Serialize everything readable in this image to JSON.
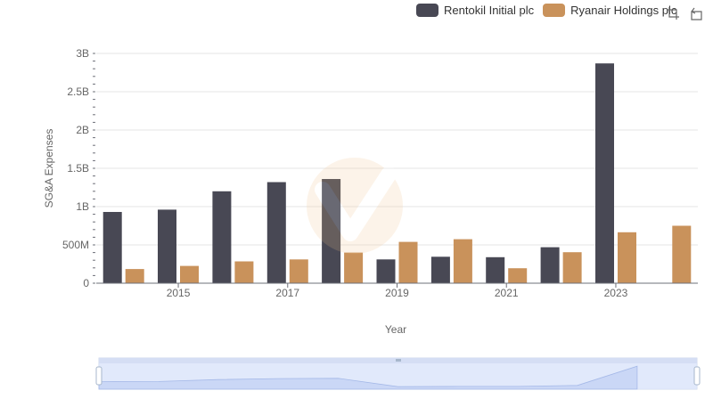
{
  "chart_data": {
    "type": "bar",
    "xlabel": "Year",
    "ylabel": "SG&A Expenses",
    "categories": [
      "2014",
      "2015",
      "2016",
      "2017",
      "2018",
      "2019",
      "2020",
      "2021",
      "2022",
      "2023",
      "2024"
    ],
    "x_tick_labels": [
      "2015",
      "2017",
      "2019",
      "2021",
      "2023"
    ],
    "y_tick_labels": [
      "0",
      "500M",
      "1B",
      "1.5B",
      "2B",
      "2.5B",
      "3B"
    ],
    "ylim": [
      0,
      3000000000
    ],
    "grid": true,
    "legend_position": "top-right",
    "series": [
      {
        "name": "Rentokil Initial plc",
        "color": "#484854",
        "values": [
          930000000,
          960000000,
          1200000000,
          1320000000,
          1360000000,
          310000000,
          345000000,
          340000000,
          470000000,
          2870000000,
          null
        ]
      },
      {
        "name": "Ryanair Holdings plc",
        "color": "#c9925b",
        "values": [
          185000000,
          225000000,
          285000000,
          310000000,
          400000000,
          540000000,
          575000000,
          195000000,
          405000000,
          665000000,
          750000000
        ]
      }
    ]
  },
  "legend": {
    "items": [
      {
        "label": "Rentokil Initial plc",
        "color": "#484854"
      },
      {
        "label": "Ryanair Holdings plc",
        "color": "#c9925b"
      }
    ]
  },
  "toolbar": {
    "zoom_icon": "zoom-select-icon",
    "restore_icon": "restore-icon"
  },
  "datazoom": {
    "range_start": 0,
    "range_end": 100
  }
}
